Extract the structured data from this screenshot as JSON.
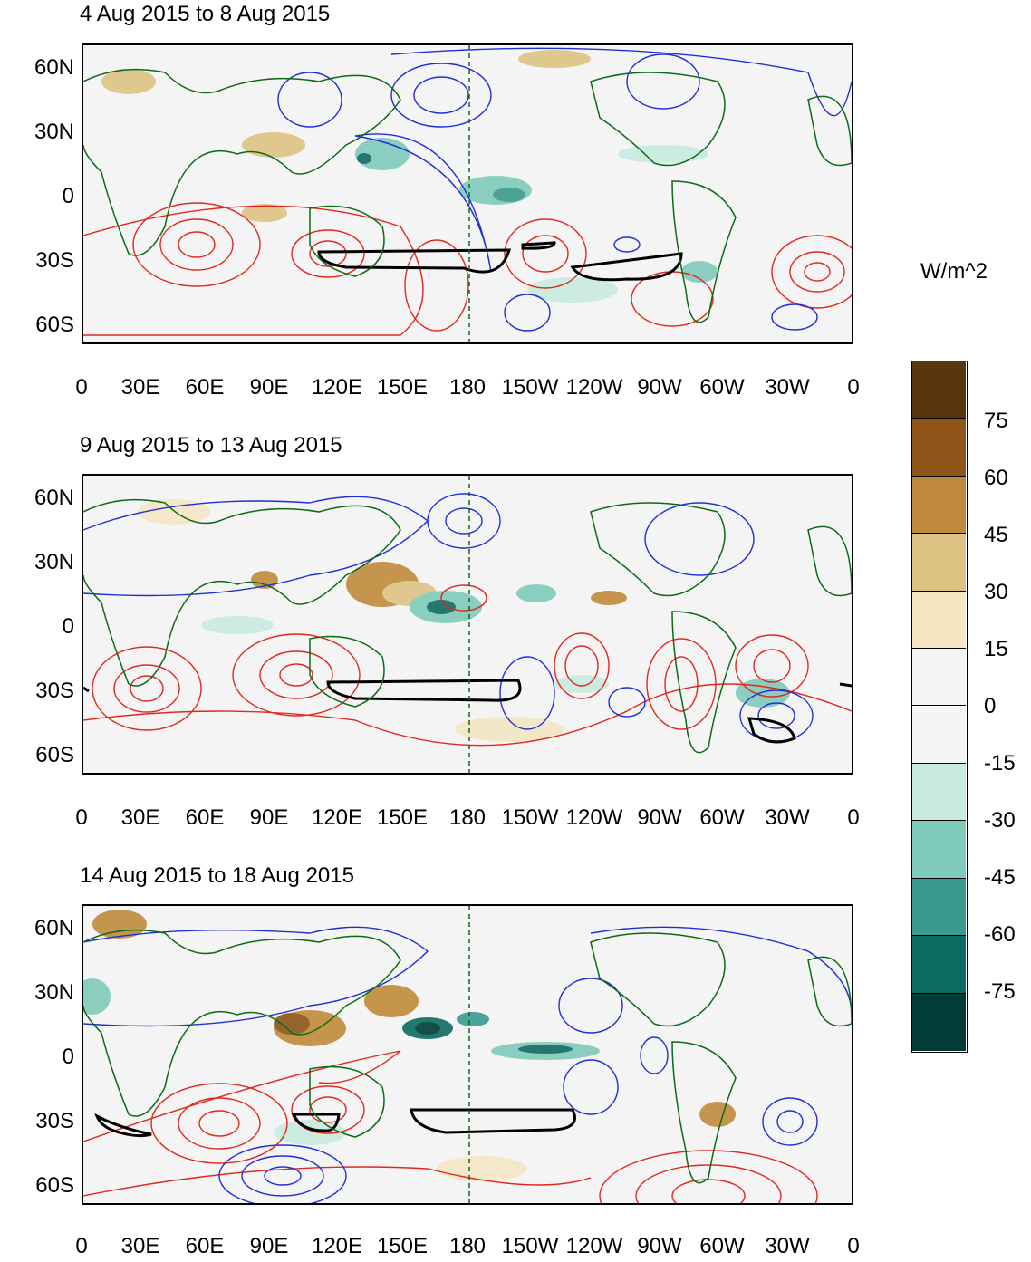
{
  "panels": [
    {
      "title": "4 Aug 2015 to 8 Aug 2015"
    },
    {
      "title": "9 Aug 2015 to 13 Aug 2015"
    },
    {
      "title": "14 Aug 2015 to 18 Aug 2015"
    }
  ],
  "axes": {
    "y_ticks": [
      "60N",
      "30N",
      "0",
      "30S",
      "60S"
    ],
    "x_ticks": [
      "0",
      "30E",
      "60E",
      "90E",
      "120E",
      "150E",
      "180",
      "150W",
      "120W",
      "90W",
      "60W",
      "30W",
      "0"
    ]
  },
  "colorbar": {
    "title": "W/m^2",
    "labels": [
      "75",
      "60",
      "45",
      "30",
      "15",
      "0",
      "-15",
      "-30",
      "-45",
      "-60",
      "-75"
    ],
    "colors": [
      "#5a3610",
      "#8e5418",
      "#c08a3c",
      "#ddc383",
      "#f5e6c4",
      "#f4f4f4",
      "#f4f4f4",
      "#c8ebe0",
      "#7fcabb",
      "#3a9a8d",
      "#0d6b62",
      "#013d36"
    ]
  }
}
